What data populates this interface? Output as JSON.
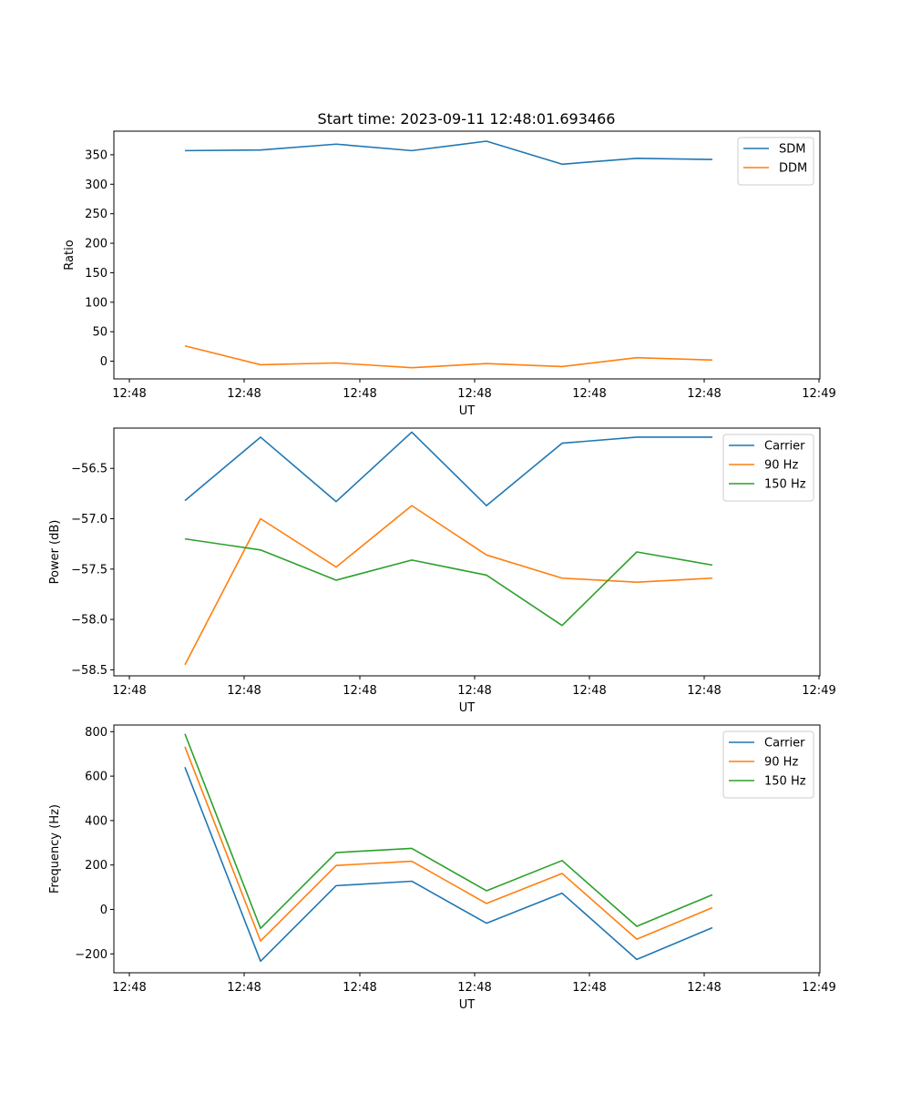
{
  "title": "Start time: 2023-09-11 12:48:01.693466",
  "chart_data": [
    {
      "type": "line",
      "xlabel": "UT",
      "ylabel": "Ratio",
      "x_tick_labels": [
        "12:48",
        "12:48",
        "12:48",
        "12:48",
        "12:48",
        "12:48",
        "12:48"
      ],
      "x_last_tick_label": "12:49",
      "ylim": [
        -30,
        390
      ],
      "yticks": [
        0,
        50,
        100,
        150,
        200,
        250,
        300,
        350
      ],
      "ytick_labels": [
        "0",
        "50",
        "100",
        "150",
        "200",
        "250",
        "300",
        "350"
      ],
      "legend": "upper right",
      "series": [
        {
          "name": "SDM",
          "color": "#1f77b4",
          "values": [
            357,
            358,
            368,
            357,
            373,
            334,
            344,
            342
          ]
        },
        {
          "name": "DDM",
          "color": "#ff7f0e",
          "values": [
            26,
            -6,
            -3,
            -11,
            -4,
            -9,
            6,
            2
          ]
        }
      ]
    },
    {
      "type": "line",
      "xlabel": "UT",
      "ylabel": "Power (dB)",
      "x_tick_labels": [
        "12:48",
        "12:48",
        "12:48",
        "12:48",
        "12:48",
        "12:48",
        "12:48"
      ],
      "x_last_tick_label": "12:49",
      "ylim": [
        -58.56,
        -56.1
      ],
      "yticks": [
        -58.5,
        -58.0,
        -57.5,
        -57.0,
        -56.5
      ],
      "ytick_labels": [
        "−58.5",
        "−58.0",
        "−57.5",
        "−57.0",
        "−56.5"
      ],
      "legend": "upper right",
      "series": [
        {
          "name": "Carrier",
          "color": "#1f77b4",
          "values": [
            -56.82,
            -56.19,
            -56.83,
            -56.14,
            -56.87,
            -56.25,
            -56.19,
            -56.19
          ]
        },
        {
          "name": "90 Hz",
          "color": "#ff7f0e",
          "values": [
            -58.45,
            -57.0,
            -57.48,
            -56.87,
            -57.36,
            -57.59,
            -57.63,
            -57.59
          ]
        },
        {
          "name": "150 Hz",
          "color": "#2ca02c",
          "values": [
            -57.2,
            -57.31,
            -57.61,
            -57.41,
            -57.56,
            -58.06,
            -57.33,
            -57.46
          ]
        }
      ]
    },
    {
      "type": "line",
      "xlabel": "UT",
      "ylabel": "Frequency (Hz)",
      "x_tick_labels": [
        "12:48",
        "12:48",
        "12:48",
        "12:48",
        "12:48",
        "12:48",
        "12:48"
      ],
      "x_last_tick_label": "12:49",
      "ylim": [
        -285,
        830
      ],
      "yticks": [
        -200,
        0,
        200,
        400,
        600,
        800
      ],
      "ytick_labels": [
        "−200",
        "0",
        "200",
        "400",
        "600",
        "800"
      ],
      "legend": "upper right",
      "series": [
        {
          "name": "Carrier",
          "color": "#1f77b4",
          "values": [
            640,
            -233,
            107,
            127,
            -62,
            73,
            -225,
            -82
          ]
        },
        {
          "name": "90 Hz",
          "color": "#ff7f0e",
          "values": [
            732,
            -142,
            198,
            217,
            27,
            162,
            -134,
            8
          ]
        },
        {
          "name": "150 Hz",
          "color": "#2ca02c",
          "values": [
            790,
            -85,
            256,
            275,
            84,
            220,
            -76,
            66
          ]
        }
      ]
    }
  ]
}
